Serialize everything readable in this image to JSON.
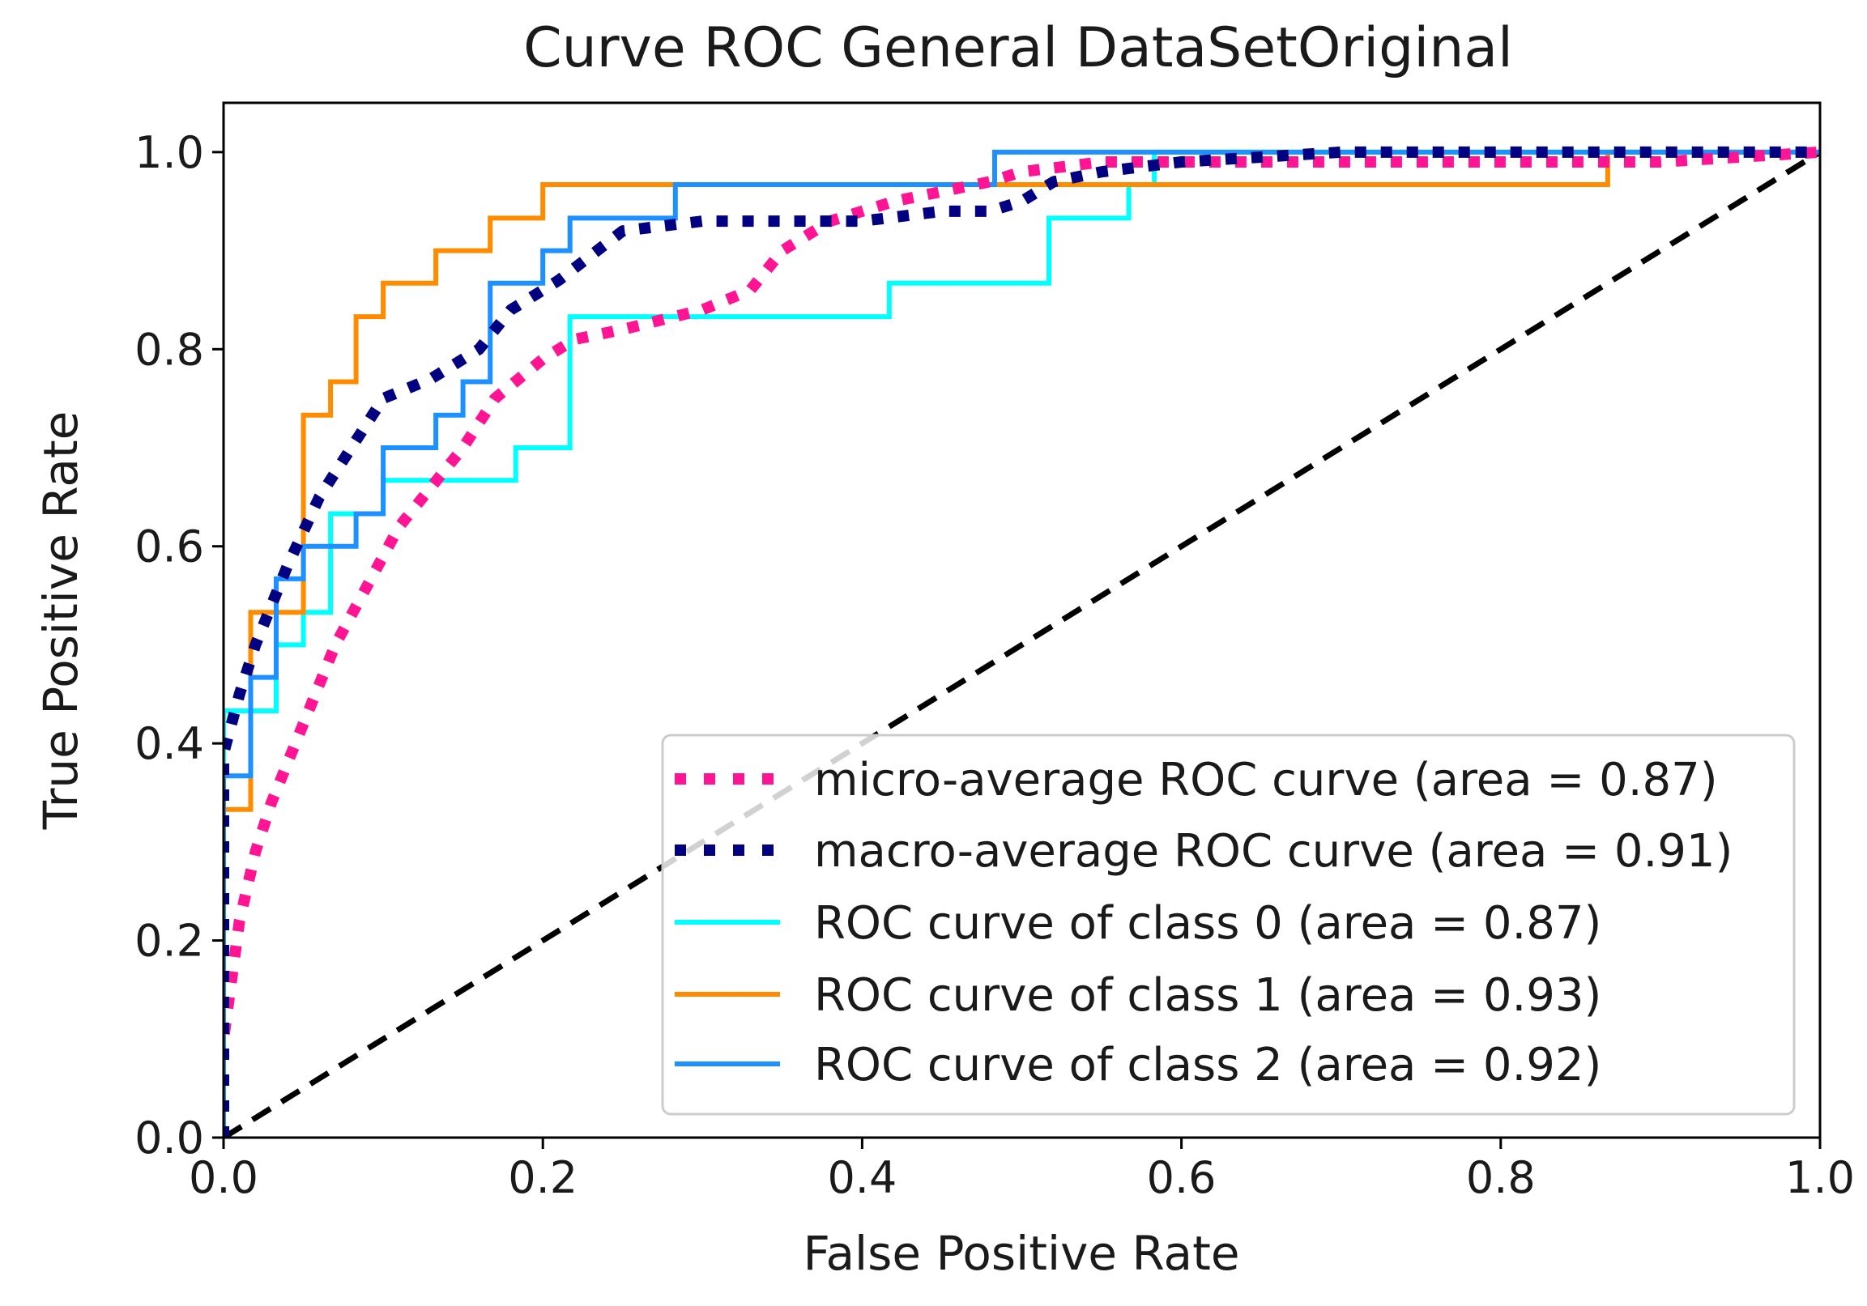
{
  "chart_data": {
    "type": "line",
    "title": "Curve ROC General DataSetOriginal",
    "xlabel": "False Positive Rate",
    "ylabel": "True Positive Rate",
    "xlim": [
      0.0,
      1.0
    ],
    "ylim": [
      0.0,
      1.05
    ],
    "xticks": [
      "0.0",
      "0.2",
      "0.4",
      "0.6",
      "0.8",
      "1.0"
    ],
    "yticks": [
      "0.0",
      "0.2",
      "0.4",
      "0.6",
      "0.8",
      "1.0"
    ],
    "grid": false,
    "legend_position": "lower-right",
    "diagonal": {
      "x": [
        0,
        1
      ],
      "y": [
        0,
        1
      ],
      "color": "#000000",
      "style": "dashed"
    },
    "series": [
      {
        "name": "micro-average ROC curve (area = 0.87)",
        "color": "#ff1493",
        "style": "dotted",
        "x": [
          0.0,
          0.0,
          0.01,
          0.02,
          0.03,
          0.05,
          0.07,
          0.09,
          0.11,
          0.13,
          0.15,
          0.17,
          0.2,
          0.22,
          0.25,
          0.3,
          0.33,
          0.35,
          0.38,
          0.42,
          0.45,
          0.48,
          0.5,
          0.55,
          0.6,
          0.7,
          0.8,
          0.9,
          1.0
        ],
        "y": [
          0.0,
          0.1,
          0.22,
          0.29,
          0.34,
          0.42,
          0.5,
          0.56,
          0.62,
          0.66,
          0.7,
          0.75,
          0.79,
          0.81,
          0.82,
          0.84,
          0.86,
          0.9,
          0.93,
          0.95,
          0.96,
          0.97,
          0.98,
          0.99,
          0.99,
          0.99,
          0.99,
          0.99,
          1.0
        ]
      },
      {
        "name": "macro-average ROC curve (area = 0.91)",
        "color": "#000080",
        "style": "dotted",
        "x": [
          0.0,
          0.0,
          0.01,
          0.02,
          0.04,
          0.06,
          0.08,
          0.1,
          0.13,
          0.16,
          0.18,
          0.21,
          0.25,
          0.3,
          0.35,
          0.4,
          0.45,
          0.48,
          0.5,
          0.52,
          0.55,
          0.6,
          0.7,
          0.8,
          0.9,
          1.0
        ],
        "y": [
          0.0,
          0.39,
          0.45,
          0.5,
          0.58,
          0.65,
          0.7,
          0.75,
          0.77,
          0.8,
          0.84,
          0.87,
          0.92,
          0.93,
          0.93,
          0.93,
          0.94,
          0.94,
          0.95,
          0.97,
          0.98,
          0.99,
          1.0,
          1.0,
          1.0,
          1.0
        ]
      },
      {
        "name": "ROC curve of class 0 (area = 0.87)",
        "color": "#00ffff",
        "style": "solid",
        "x": [
          0.0,
          0.0,
          0.015,
          0.015,
          0.033,
          0.033,
          0.05,
          0.05,
          0.067,
          0.067,
          0.1,
          0.1,
          0.183,
          0.183,
          0.217,
          0.217,
          0.417,
          0.417,
          0.517,
          0.517,
          0.567,
          0.567,
          0.583,
          0.583,
          1.0
        ],
        "y": [
          0.0,
          0.433,
          0.433,
          0.433,
          0.433,
          0.5,
          0.5,
          0.533,
          0.533,
          0.633,
          0.633,
          0.667,
          0.667,
          0.7,
          0.7,
          0.833,
          0.833,
          0.867,
          0.867,
          0.933,
          0.933,
          0.967,
          0.967,
          1.0,
          1.0
        ]
      },
      {
        "name": "ROC curve of class 1 (area = 0.93)",
        "color": "#ff8c00",
        "style": "solid",
        "x": [
          0.0,
          0.0,
          0.017,
          0.017,
          0.05,
          0.05,
          0.067,
          0.067,
          0.083,
          0.083,
          0.1,
          0.1,
          0.133,
          0.133,
          0.167,
          0.167,
          0.2,
          0.2,
          0.283,
          0.283,
          0.867,
          0.867,
          1.0
        ],
        "y": [
          0.0,
          0.333,
          0.333,
          0.533,
          0.533,
          0.733,
          0.733,
          0.767,
          0.767,
          0.833,
          0.833,
          0.867,
          0.867,
          0.9,
          0.9,
          0.933,
          0.933,
          0.967,
          0.967,
          0.967,
          0.967,
          1.0,
          1.0
        ]
      },
      {
        "name": "ROC curve of class 2 (area = 0.92)",
        "color": "#1e90ff",
        "style": "solid",
        "x": [
          0.0,
          0.0,
          0.017,
          0.017,
          0.033,
          0.033,
          0.05,
          0.05,
          0.083,
          0.083,
          0.1,
          0.1,
          0.133,
          0.133,
          0.15,
          0.15,
          0.167,
          0.167,
          0.2,
          0.2,
          0.217,
          0.217,
          0.283,
          0.283,
          0.483,
          0.483,
          1.0
        ],
        "y": [
          0.0,
          0.367,
          0.367,
          0.467,
          0.467,
          0.567,
          0.567,
          0.6,
          0.6,
          0.633,
          0.633,
          0.7,
          0.7,
          0.733,
          0.733,
          0.767,
          0.767,
          0.867,
          0.867,
          0.9,
          0.9,
          0.933,
          0.933,
          0.967,
          0.967,
          1.0,
          1.0
        ]
      }
    ]
  }
}
